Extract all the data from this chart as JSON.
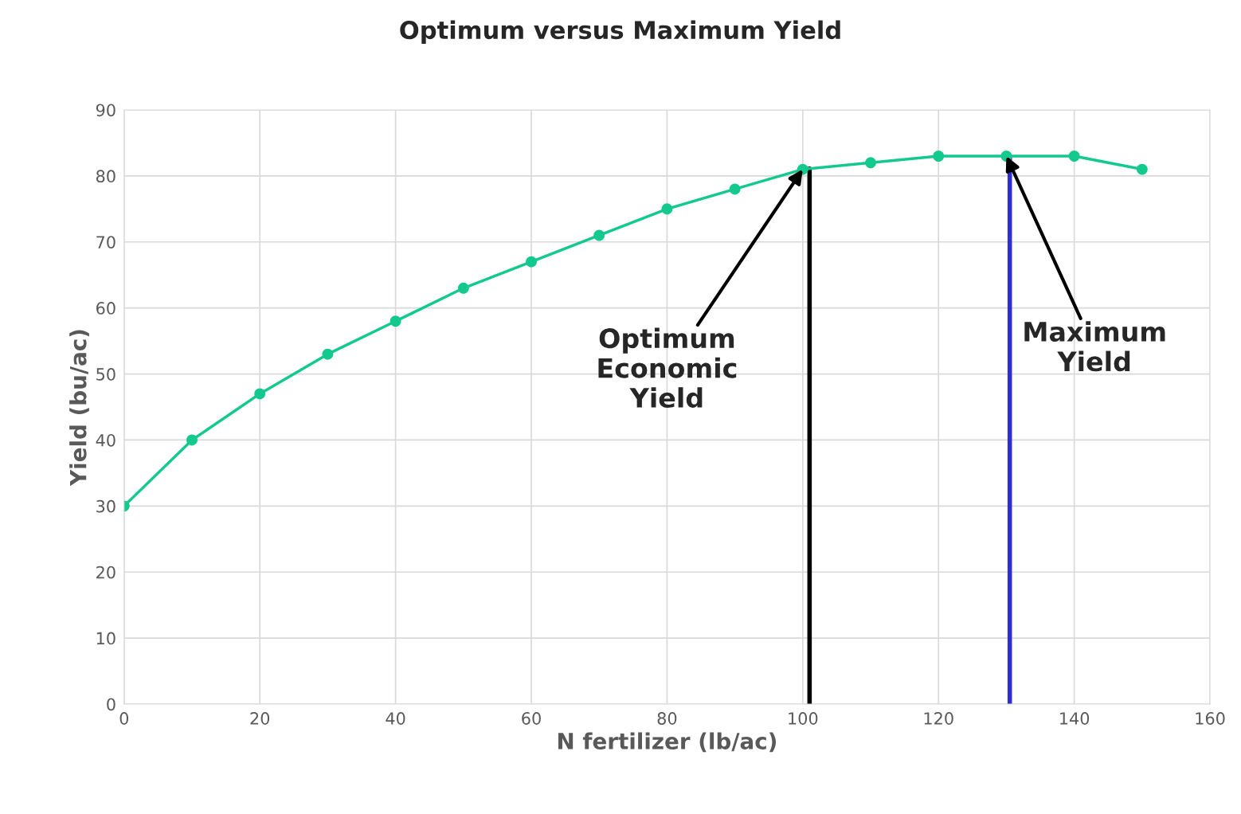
{
  "chart_data": {
    "type": "line",
    "title": "Optimum versus Maximum Yield",
    "xlabel": "N fertilizer (lb/ac)",
    "ylabel": "Yield (bu/ac)",
    "x": [
      0,
      10,
      20,
      30,
      40,
      50,
      60,
      70,
      80,
      90,
      100,
      110,
      120,
      130,
      140,
      150
    ],
    "series": [
      {
        "color": "#13c98e",
        "values": [
          30,
          40,
          47,
          53,
          58,
          63,
          67,
          71,
          75,
          78,
          81,
          82,
          83,
          83,
          83,
          81
        ]
      }
    ],
    "xlim": [
      0,
      160
    ],
    "xticks": [
      0,
      20,
      40,
      60,
      80,
      100,
      120,
      140,
      160
    ],
    "ylim": [
      0,
      90
    ],
    "yticks": [
      0,
      10,
      20,
      30,
      40,
      50,
      60,
      70,
      80,
      90
    ],
    "grid": true,
    "marker": "circle",
    "line_style": "solid",
    "ref_lines": [
      {
        "axis": "x",
        "value": 101,
        "color": "#000000"
      },
      {
        "axis": "x",
        "value": 130.5,
        "color": "#2f2fd0"
      }
    ],
    "annotations": [
      {
        "text": "Optimum\nEconomic\nYield",
        "x": 100,
        "y": 81
      },
      {
        "text": "Maximum\nYield",
        "x": 130,
        "y": 83
      }
    ]
  }
}
